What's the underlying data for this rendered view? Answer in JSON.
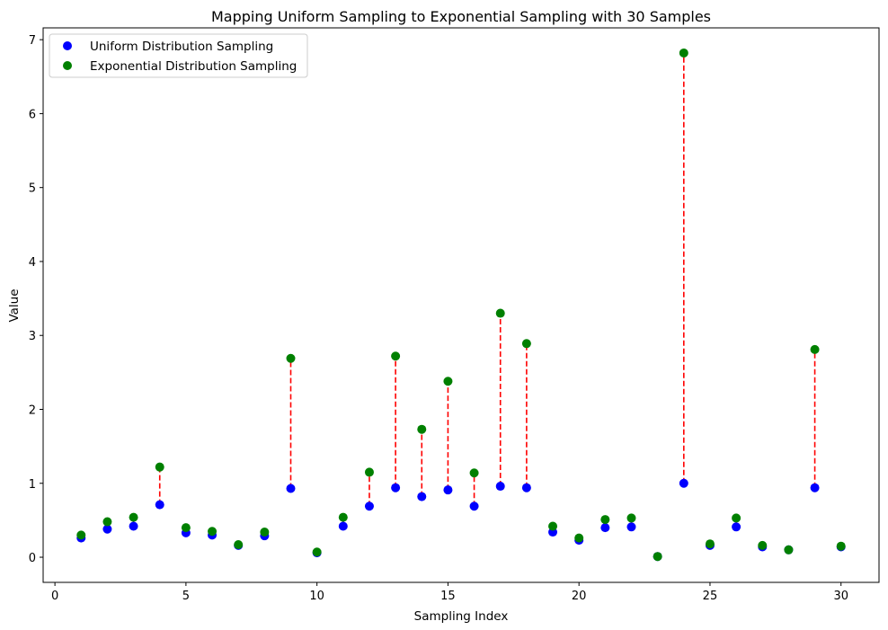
{
  "chart_data": {
    "type": "scatter",
    "title": "Mapping Uniform Sampling to Exponential Sampling with 30 Samples",
    "xlabel": "Sampling Index",
    "ylabel": "Value",
    "xlim": [
      -0.45,
      31.45
    ],
    "ylim": [
      -0.34,
      7.16
    ],
    "xticks": [
      0,
      5,
      10,
      15,
      20,
      25,
      30
    ],
    "yticks": [
      0,
      1,
      2,
      3,
      4,
      5,
      6,
      7
    ],
    "grid": false,
    "legend_position": "top-left",
    "x": [
      1,
      2,
      3,
      4,
      5,
      6,
      7,
      8,
      9,
      10,
      11,
      12,
      13,
      14,
      15,
      16,
      17,
      18,
      19,
      20,
      21,
      22,
      23,
      24,
      25,
      26,
      27,
      28,
      29,
      30
    ],
    "series": [
      {
        "name": "Uniform Distribution Sampling",
        "color": "#0000ff",
        "values": [
          0.26,
          0.38,
          0.42,
          0.71,
          0.33,
          0.3,
          0.16,
          0.29,
          0.93,
          0.06,
          0.42,
          0.69,
          0.94,
          0.82,
          0.91,
          0.69,
          0.96,
          0.94,
          0.34,
          0.23,
          0.4,
          0.41,
          0.01,
          1.0,
          0.16,
          0.41,
          0.14,
          0.1,
          0.94,
          0.14
        ]
      },
      {
        "name": "Exponential Distribution Sampling",
        "color": "#008000",
        "values": [
          0.3,
          0.48,
          0.54,
          1.22,
          0.4,
          0.35,
          0.17,
          0.34,
          2.69,
          0.07,
          0.54,
          1.15,
          2.72,
          1.73,
          2.38,
          1.14,
          3.3,
          2.89,
          0.42,
          0.26,
          0.51,
          0.53,
          0.01,
          6.82,
          0.18,
          0.53,
          0.16,
          0.1,
          2.81,
          0.15
        ]
      }
    ],
    "connector_color": "#ff0000",
    "connector_style": "dashed"
  }
}
